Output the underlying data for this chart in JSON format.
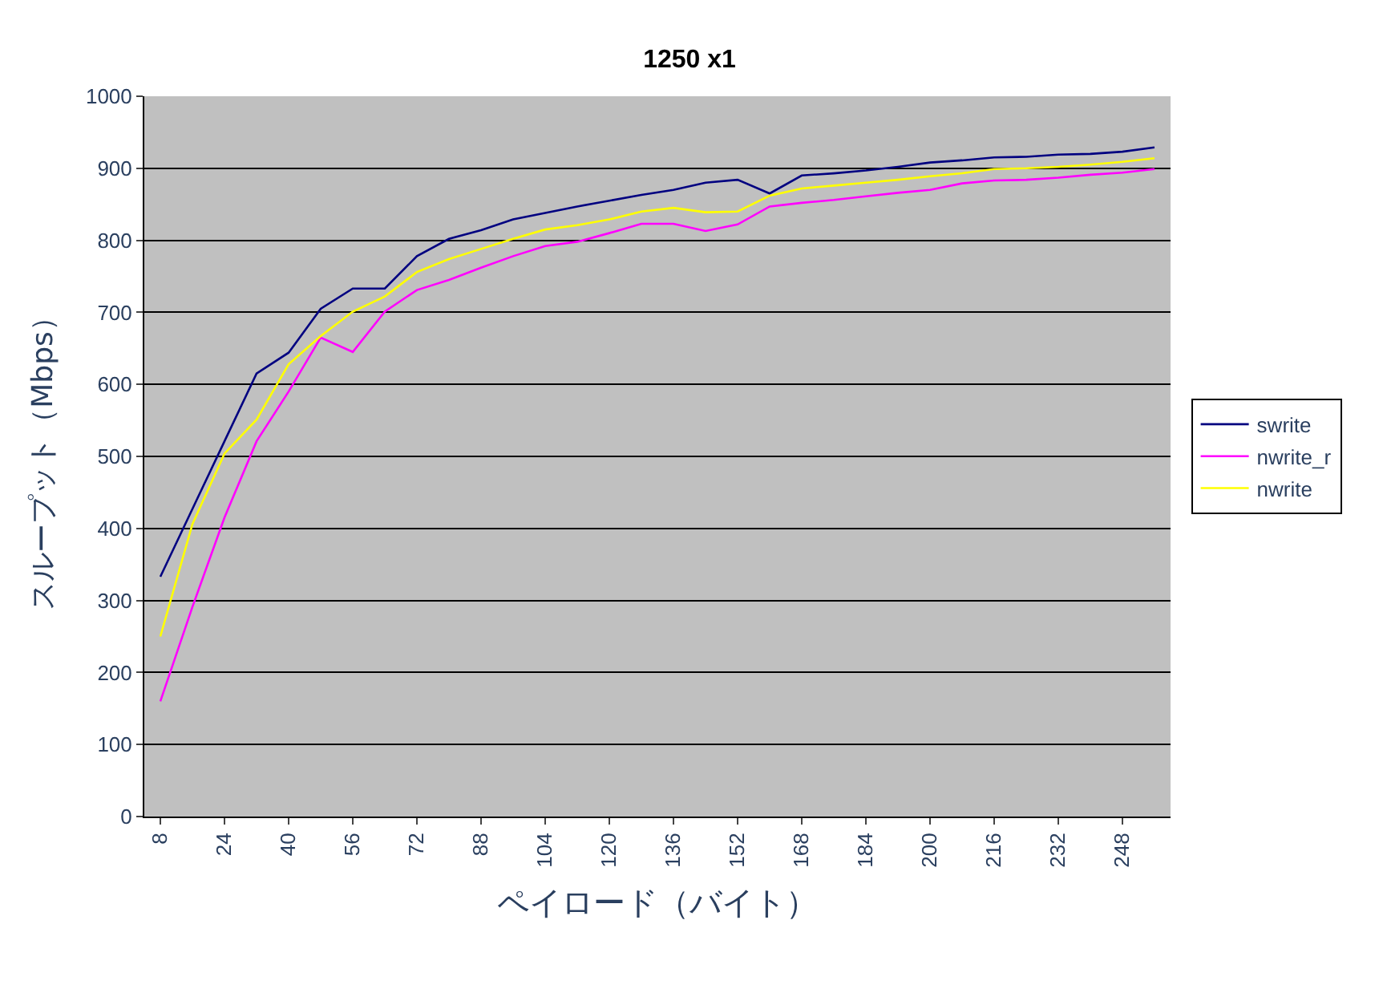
{
  "chart_data": {
    "type": "line",
    "title": "1250 x1",
    "xlabel": "ペイロード（バイト）",
    "ylabel": "スループット（Mbps）",
    "categories": [
      "8",
      null,
      "24",
      null,
      "40",
      null,
      "56",
      null,
      "72",
      null,
      "88",
      null,
      "104",
      null,
      "120",
      null,
      "136",
      null,
      "152",
      null,
      "168",
      null,
      "184",
      null,
      "200",
      null,
      "216",
      null,
      "232",
      null,
      "248",
      null
    ],
    "series": [
      {
        "name": "swrite",
        "color": "#000080",
        "values": [
          333,
          427,
          521,
          615,
          644,
          705,
          733,
          733,
          778,
          802,
          814,
          829,
          838,
          847,
          855,
          863,
          870,
          880,
          884,
          865,
          890,
          893,
          897,
          902,
          908,
          911,
          915,
          916,
          919,
          920,
          923,
          929
        ]
      },
      {
        "name": "nwrite_r",
        "color": "#ff00ff",
        "values": [
          160,
          291,
          415,
          521,
          590,
          665,
          645,
          701,
          731,
          745,
          762,
          778,
          792,
          798,
          810,
          823,
          823,
          813,
          822,
          847,
          852,
          856,
          861,
          866,
          870,
          879,
          883,
          884,
          887,
          891,
          894,
          899
        ]
      },
      {
        "name": "nwrite",
        "color": "#ffff00",
        "values": [
          250,
          406,
          504,
          551,
          628,
          667,
          701,
          722,
          756,
          774,
          788,
          802,
          815,
          821,
          829,
          840,
          845,
          839,
          840,
          862,
          872,
          876,
          880,
          884,
          889,
          893,
          899,
          900,
          902,
          905,
          909,
          914
        ]
      }
    ],
    "ylim": [
      0,
      1000
    ],
    "yticks": [
      0,
      100,
      200,
      300,
      400,
      500,
      600,
      700,
      800,
      900,
      1000
    ],
    "grid": "y",
    "legend": "right",
    "marker": "none",
    "line_style": "solid"
  }
}
